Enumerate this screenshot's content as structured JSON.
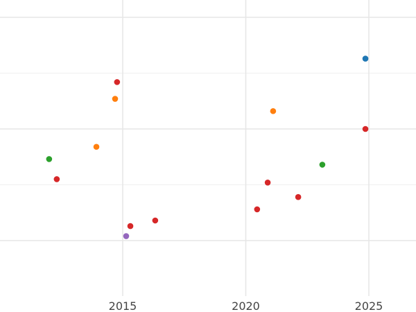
{
  "chart_data": {
    "type": "scatter",
    "title": "",
    "xlabel": "",
    "ylabel": "",
    "xlim": [
      2010.0,
      2026.9
    ],
    "ylim": [
      -0.5,
      2.15
    ],
    "grid": true,
    "x_ticks": [
      2015,
      2020,
      2025
    ],
    "x_tick_labels": [
      "2015",
      "2020",
      "2025"
    ],
    "y_gridlines": [
      0,
      0.5,
      1,
      1.5,
      2
    ],
    "colors": {
      "blue": "#1f77b4",
      "orange": "#ff7f0e",
      "green": "#2ca02c",
      "red": "#d62728",
      "purple": "#9467bd"
    },
    "points": [
      {
        "x": 2024.86,
        "y": 1.63,
        "color": "blue"
      },
      {
        "x": 2014.77,
        "y": 1.42,
        "color": "red"
      },
      {
        "x": 2014.69,
        "y": 1.27,
        "color": "orange"
      },
      {
        "x": 2021.11,
        "y": 1.16,
        "color": "orange"
      },
      {
        "x": 2024.86,
        "y": 1.0,
        "color": "red"
      },
      {
        "x": 2013.93,
        "y": 0.84,
        "color": "orange"
      },
      {
        "x": 2012.01,
        "y": 0.73,
        "color": "green"
      },
      {
        "x": 2023.11,
        "y": 0.68,
        "color": "green"
      },
      {
        "x": 2012.32,
        "y": 0.55,
        "color": "red"
      },
      {
        "x": 2020.89,
        "y": 0.52,
        "color": "red"
      },
      {
        "x": 2022.13,
        "y": 0.39,
        "color": "red"
      },
      {
        "x": 2020.46,
        "y": 0.28,
        "color": "red"
      },
      {
        "x": 2016.32,
        "y": 0.18,
        "color": "red"
      },
      {
        "x": 2015.31,
        "y": 0.13,
        "color": "red"
      },
      {
        "x": 2015.14,
        "y": 0.04,
        "color": "purple"
      }
    ]
  }
}
